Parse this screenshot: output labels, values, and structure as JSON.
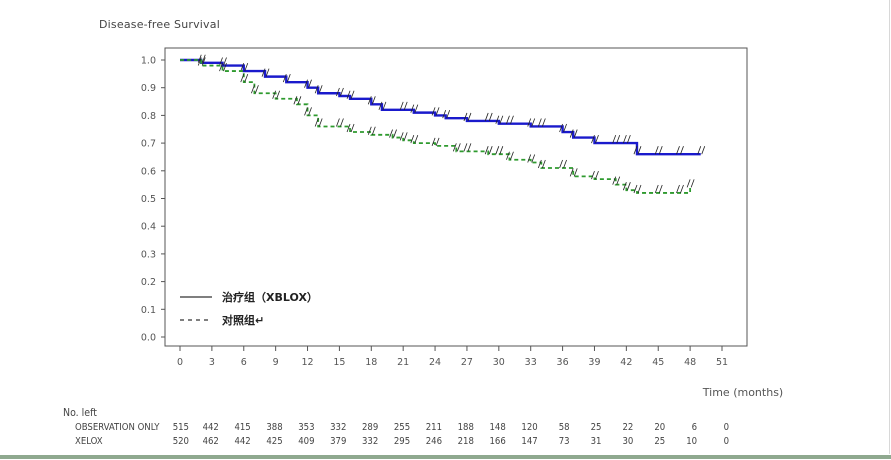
{
  "chart_data": {
    "type": "line",
    "title": "Disease-free Survival",
    "xlabel": "Time (months)",
    "ylabel": "",
    "xlim": [
      0,
      51
    ],
    "ylim": [
      0,
      1.0
    ],
    "xticks": [
      "0",
      "3",
      "6",
      "9",
      "12",
      "15",
      "18",
      "21",
      "24",
      "27",
      "30",
      "33",
      "36",
      "39",
      "42",
      "45",
      "48",
      "51"
    ],
    "yticks": [
      "0.0",
      "0.1",
      "0.2",
      "0.3",
      "0.4",
      "0.5",
      "0.6",
      "0.7",
      "0.8",
      "0.9",
      "1.0"
    ],
    "grid": false,
    "legend_position": "bottom-left",
    "series": [
      {
        "name": "治疗组（XBLOX）",
        "color": "#1a1acc",
        "style": "solid",
        "x": [
          0,
          2,
          4,
          6,
          8,
          10,
          12,
          13,
          15,
          16,
          18,
          19,
          21,
          22,
          24,
          25,
          27,
          29,
          30,
          31,
          33,
          34,
          36,
          37,
          39,
          41,
          42,
          43,
          45,
          47,
          49
        ],
        "y": [
          1.0,
          0.99,
          0.98,
          0.96,
          0.94,
          0.92,
          0.9,
          0.88,
          0.87,
          0.86,
          0.84,
          0.82,
          0.82,
          0.81,
          0.8,
          0.79,
          0.78,
          0.78,
          0.77,
          0.77,
          0.76,
          0.76,
          0.74,
          0.72,
          0.7,
          0.7,
          0.7,
          0.66,
          0.66,
          0.66,
          0.66
        ]
      },
      {
        "name": "对照组",
        "color": "#2e9a2e",
        "style": "dashed",
        "x": [
          0,
          2,
          4,
          6,
          7,
          9,
          11,
          12,
          13,
          15,
          16,
          18,
          20,
          21,
          22,
          24,
          26,
          27,
          29,
          30,
          31,
          33,
          34,
          36,
          37,
          39,
          41,
          42,
          43,
          45,
          47,
          48
        ],
        "y": [
          1.0,
          0.98,
          0.96,
          0.92,
          0.88,
          0.86,
          0.84,
          0.8,
          0.76,
          0.76,
          0.74,
          0.73,
          0.72,
          0.71,
          0.7,
          0.69,
          0.67,
          0.67,
          0.66,
          0.66,
          0.64,
          0.63,
          0.61,
          0.61,
          0.58,
          0.57,
          0.55,
          0.53,
          0.52,
          0.52,
          0.52,
          0.54
        ]
      }
    ],
    "legend": [
      {
        "label": "治疗组（XBLOX）",
        "style": "solid"
      },
      {
        "label": "对照组↵",
        "style": "dashed"
      }
    ],
    "risk_table": {
      "heading": "No. left",
      "times": [
        0,
        3,
        6,
        9,
        12,
        15,
        18,
        21,
        24,
        27,
        30,
        33,
        36,
        39,
        42,
        45,
        48,
        51
      ],
      "rows": [
        {
          "label": "OBSERVATION ONLY",
          "values": [
            "515",
            "442",
            "415",
            "388",
            "353",
            "332",
            "289",
            "255",
            "211",
            "188",
            "148",
            "120",
            "58",
            "25",
            "22",
            "20",
            "6",
            "0"
          ]
        },
        {
          "label": "XELOX",
          "values": [
            "520",
            "462",
            "442",
            "425",
            "409",
            "379",
            "332",
            "295",
            "246",
            "218",
            "166",
            "147",
            "73",
            "31",
            "30",
            "25",
            "10",
            "0"
          ]
        }
      ]
    }
  }
}
